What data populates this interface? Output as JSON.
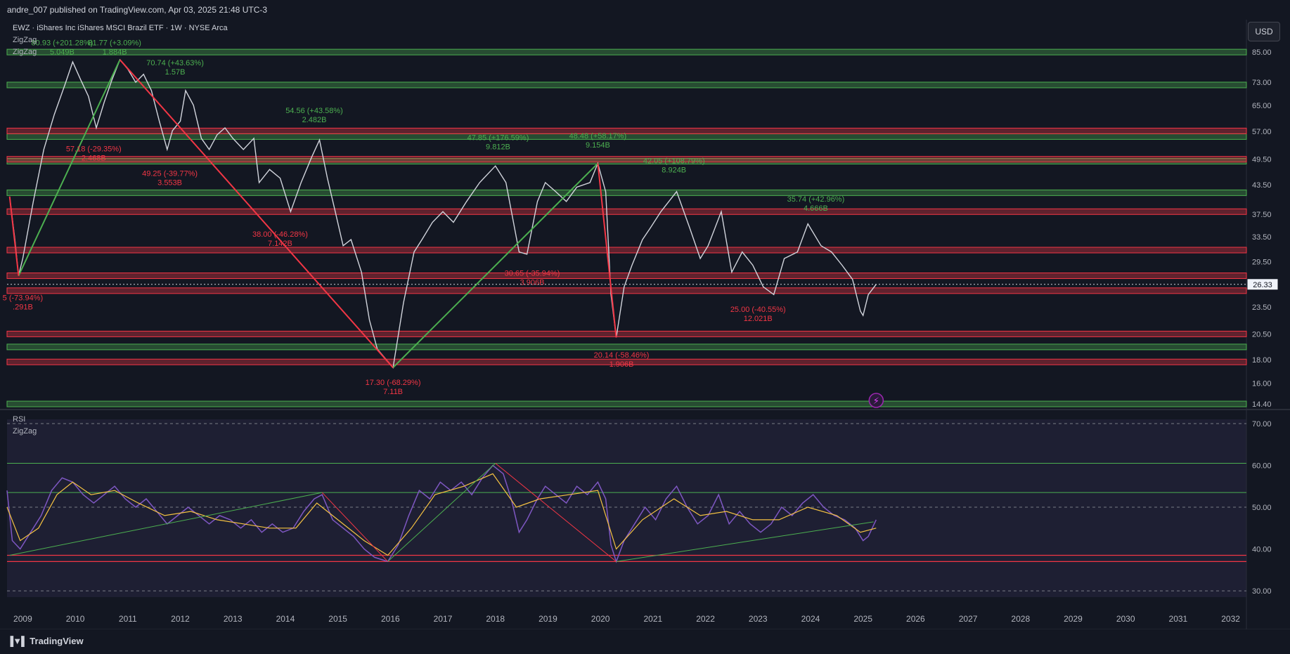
{
  "header": {
    "published": "andre_007 published on TradingView.com, Apr 03, 2025 21:48 UTC-3",
    "symbol": "EWZ · iShares Inc iShares MSCI Brazil ETF · 1W · NYSE Arca",
    "indicator_1": "ZigZag",
    "indicator_2": "ZigZag",
    "currency": "USD"
  },
  "rsi_pane": {
    "title": "RSI",
    "indicator": "ZigZag"
  },
  "footer": {
    "logo": "TradingView"
  },
  "colors": {
    "bg": "#131722",
    "rsi_bg": "#1e1f33",
    "up": "#4caf50",
    "down": "#f23645",
    "price": "#d1d4dc",
    "rsi": "#7e57c2",
    "rsi_ma": "#f5c242",
    "grid_text": "#b2b5be"
  },
  "chart_data": [
    {
      "type": "line",
      "title": "EWZ · iShares Inc iShares MSCI Brazil ETF · 1W · NYSE Arca",
      "scale": "log",
      "xlim": [
        2008.7,
        2032.3
      ],
      "ylim": [
        14.0,
        90.0
      ],
      "x_ticks": [
        "2009",
        "2010",
        "2011",
        "2012",
        "2013",
        "2014",
        "2015",
        "2016",
        "2017",
        "2018",
        "2019",
        "2020",
        "2021",
        "2022",
        "2023",
        "2024",
        "2025",
        "2026",
        "2027",
        "2028",
        "2029",
        "2030",
        "2031",
        "2032"
      ],
      "y_ticks": [
        "85.00",
        "73.00",
        "65.00",
        "57.00",
        "49.50",
        "43.50",
        "37.50",
        "33.50",
        "29.50",
        "23.50",
        "20.50",
        "18.00",
        "16.00",
        "14.40"
      ],
      "last_price": "26.33",
      "price_series": [
        [
          2008.75,
          41.0
        ],
        [
          2008.85,
          33.0
        ],
        [
          2008.92,
          27.5
        ],
        [
          2009.0,
          30.0
        ],
        [
          2009.2,
          40.0
        ],
        [
          2009.4,
          52.0
        ],
        [
          2009.6,
          62.0
        ],
        [
          2009.8,
          72.0
        ],
        [
          2009.95,
          80.9
        ],
        [
          2010.1,
          74.0
        ],
        [
          2010.25,
          68.0
        ],
        [
          2010.4,
          58.0
        ],
        [
          2010.55,
          66.0
        ],
        [
          2010.7,
          74.0
        ],
        [
          2010.85,
          81.77
        ],
        [
          2011.0,
          78.0
        ],
        [
          2011.15,
          73.0
        ],
        [
          2011.3,
          76.0
        ],
        [
          2011.45,
          70.0
        ],
        [
          2011.6,
          60.0
        ],
        [
          2011.75,
          52.0
        ],
        [
          2011.85,
          57.18
        ],
        [
          2012.0,
          60.0
        ],
        [
          2012.1,
          70.0
        ],
        [
          2012.25,
          65.0
        ],
        [
          2012.4,
          55.0
        ],
        [
          2012.55,
          52.0
        ],
        [
          2012.7,
          56.0
        ],
        [
          2012.85,
          58.0
        ],
        [
          2013.0,
          55.0
        ],
        [
          2013.2,
          52.0
        ],
        [
          2013.4,
          55.0
        ],
        [
          2013.5,
          44.0
        ],
        [
          2013.7,
          47.0
        ],
        [
          2013.9,
          45.0
        ],
        [
          2014.1,
          38.0
        ],
        [
          2014.3,
          44.0
        ],
        [
          2014.5,
          50.0
        ],
        [
          2014.65,
          54.56
        ],
        [
          2014.8,
          45.0
        ],
        [
          2014.95,
          38.0
        ],
        [
          2015.1,
          32.0
        ],
        [
          2015.25,
          33.0
        ],
        [
          2015.45,
          28.0
        ],
        [
          2015.6,
          22.0
        ],
        [
          2015.75,
          19.0
        ],
        [
          2016.05,
          17.3
        ],
        [
          2016.25,
          24.0
        ],
        [
          2016.45,
          31.0
        ],
        [
          2016.6,
          33.0
        ],
        [
          2016.8,
          36.0
        ],
        [
          2017.0,
          38.0
        ],
        [
          2017.2,
          36.0
        ],
        [
          2017.45,
          40.0
        ],
        [
          2017.7,
          44.0
        ],
        [
          2018.0,
          47.85
        ],
        [
          2018.2,
          44.0
        ],
        [
          2018.45,
          31.0
        ],
        [
          2018.6,
          30.65
        ],
        [
          2018.8,
          40.0
        ],
        [
          2018.95,
          44.0
        ],
        [
          2019.15,
          42.0
        ],
        [
          2019.35,
          40.0
        ],
        [
          2019.55,
          43.0
        ],
        [
          2019.8,
          44.0
        ],
        [
          2019.95,
          48.48
        ],
        [
          2020.1,
          42.0
        ],
        [
          2020.2,
          25.0
        ],
        [
          2020.3,
          20.14
        ],
        [
          2020.45,
          26.0
        ],
        [
          2020.6,
          29.0
        ],
        [
          2020.8,
          33.0
        ],
        [
          2020.95,
          35.0
        ],
        [
          2021.15,
          38.0
        ],
        [
          2021.45,
          42.05
        ],
        [
          2021.7,
          35.0
        ],
        [
          2021.9,
          30.0
        ],
        [
          2022.05,
          32.0
        ],
        [
          2022.3,
          38.0
        ],
        [
          2022.5,
          28.0
        ],
        [
          2022.7,
          31.0
        ],
        [
          2022.9,
          29.0
        ],
        [
          2023.1,
          26.0
        ],
        [
          2023.3,
          25.0
        ],
        [
          2023.5,
          30.0
        ],
        [
          2023.75,
          31.0
        ],
        [
          2023.95,
          35.74
        ],
        [
          2024.2,
          32.0
        ],
        [
          2024.4,
          31.0
        ],
        [
          2024.6,
          29.0
        ],
        [
          2024.8,
          27.0
        ],
        [
          2024.95,
          23.0
        ],
        [
          2025.0,
          22.5
        ],
        [
          2025.1,
          25.0
        ],
        [
          2025.25,
          26.33
        ]
      ],
      "zigzag_up": [
        {
          "from": [
            2008.92,
            27.5
          ],
          "to": [
            2010.85,
            81.77
          ]
        },
        {
          "from": [
            2016.05,
            17.3
          ],
          "to": [
            2019.95,
            48.48
          ]
        }
      ],
      "zigzag_down": [
        {
          "from": [
            2008.75,
            41.0
          ],
          "to": [
            2008.92,
            27.5
          ]
        },
        {
          "from": [
            2010.85,
            81.77
          ],
          "to": [
            2016.05,
            17.3
          ]
        },
        {
          "from": [
            2019.95,
            48.48
          ],
          "to": [
            2020.3,
            20.14
          ]
        }
      ],
      "green_zones": [
        85.0,
        72.0,
        55.5,
        49.0,
        41.8,
        19.2,
        14.4
      ],
      "red_zones": [
        57.1,
        49.5,
        38.0,
        31.3,
        27.5,
        25.5,
        20.5,
        17.8
      ],
      "annotations": [
        {
          "text": "80.93 (+201.28%)",
          "sub": "5.049B",
          "x": 2009.75,
          "y": 88.0,
          "color": "up"
        },
        {
          "text": "81.77 (+3.09%)",
          "sub": "1.884B",
          "x": 2010.75,
          "y": 88.0,
          "color": "up"
        },
        {
          "text": "70.74 (+43.63%)",
          "sub": "1.57B",
          "x": 2011.9,
          "y": 79.5,
          "color": "up"
        },
        {
          "text": "54.56 (+43.58%)",
          "sub": "2.482B",
          "x": 2014.55,
          "y": 62.5,
          "color": "up"
        },
        {
          "text": "47.85 (+176.59%)",
          "sub": "9.812B",
          "x": 2018.05,
          "y": 54.5,
          "color": "up"
        },
        {
          "text": "48.48 (+58.17%)",
          "sub": "9.154B",
          "x": 2019.95,
          "y": 55.0,
          "color": "up"
        },
        {
          "text": "42.05 (+108.79%)",
          "sub": "8.924B",
          "x": 2021.4,
          "y": 48.5,
          "color": "up"
        },
        {
          "text": "35.74 (+42.96%)",
          "sub": "4.666B",
          "x": 2024.1,
          "y": 40.0,
          "color": "up"
        },
        {
          "text": "57.18 (-29.35%)",
          "sub": "2.468B",
          "x": 2010.35,
          "y": 51.5,
          "color": "down"
        },
        {
          "text": "49.25 (-39.77%)",
          "sub": "3.553B",
          "x": 2011.8,
          "y": 45.5,
          "color": "down"
        },
        {
          "text": "38.00 (-46.28%)",
          "sub": "7.142B",
          "x": 2013.9,
          "y": 33.5,
          "color": "down"
        },
        {
          "text": "30.65 (-35.94%)",
          "sub": "3.906B",
          "x": 2018.7,
          "y": 27.5,
          "color": "down"
        },
        {
          "text": "25.00 (-40.55%)",
          "sub": "12.021B",
          "x": 2023.0,
          "y": 22.9,
          "color": "down"
        },
        {
          "text": "20.14 (-58.46%)",
          "sub": "1.906B",
          "x": 2020.4,
          "y": 18.2,
          "color": "down"
        },
        {
          "text": "17.30 (-68.29%)",
          "sub": "7.11B",
          "x": 2016.05,
          "y": 15.85,
          "color": "down"
        },
        {
          "text": "5 (-73.94%)",
          "sub": ".291B",
          "x": 2009.0,
          "y": 24.3,
          "color": "down"
        }
      ]
    },
    {
      "type": "line",
      "title": "RSI",
      "xlim": [
        2008.7,
        2032.3
      ],
      "ylim": [
        28.5,
        71.0
      ],
      "y_ticks": [
        "70.00",
        "60.00",
        "50.00",
        "40.00",
        "30.00"
      ],
      "rsi_series": [
        [
          2008.7,
          54
        ],
        [
          2008.8,
          42
        ],
        [
          2008.95,
          40
        ],
        [
          2009.15,
          44
        ],
        [
          2009.35,
          48
        ],
        [
          2009.55,
          54
        ],
        [
          2009.75,
          57
        ],
        [
          2009.95,
          56
        ],
        [
          2010.15,
          53
        ],
        [
          2010.35,
          51
        ],
        [
          2010.55,
          53
        ],
        [
          2010.75,
          55
        ],
        [
          2010.95,
          52
        ],
        [
          2011.15,
          50
        ],
        [
          2011.35,
          52
        ],
        [
          2011.55,
          49
        ],
        [
          2011.75,
          46
        ],
        [
          2011.95,
          48
        ],
        [
          2012.15,
          50
        ],
        [
          2012.35,
          48
        ],
        [
          2012.55,
          46
        ],
        [
          2012.75,
          48
        ],
        [
          2012.95,
          47
        ],
        [
          2013.15,
          45
        ],
        [
          2013.35,
          47
        ],
        [
          2013.55,
          44
        ],
        [
          2013.75,
          46
        ],
        [
          2013.95,
          44
        ],
        [
          2014.15,
          45
        ],
        [
          2014.35,
          49
        ],
        [
          2014.55,
          52
        ],
        [
          2014.7,
          53
        ],
        [
          2014.9,
          47
        ],
        [
          2015.1,
          45
        ],
        [
          2015.3,
          43
        ],
        [
          2015.5,
          40
        ],
        [
          2015.7,
          38
        ],
        [
          2015.95,
          37
        ],
        [
          2016.15,
          41
        ],
        [
          2016.35,
          48
        ],
        [
          2016.55,
          54
        ],
        [
          2016.75,
          52
        ],
        [
          2016.95,
          56
        ],
        [
          2017.15,
          54
        ],
        [
          2017.35,
          56
        ],
        [
          2017.55,
          53
        ],
        [
          2017.75,
          57
        ],
        [
          2017.95,
          60
        ],
        [
          2018.15,
          58
        ],
        [
          2018.3,
          52
        ],
        [
          2018.45,
          44
        ],
        [
          2018.6,
          47
        ],
        [
          2018.8,
          52
        ],
        [
          2018.95,
          55
        ],
        [
          2019.15,
          53
        ],
        [
          2019.35,
          51
        ],
        [
          2019.55,
          55
        ],
        [
          2019.75,
          53
        ],
        [
          2019.95,
          56
        ],
        [
          2020.1,
          52
        ],
        [
          2020.2,
          41
        ],
        [
          2020.3,
          37
        ],
        [
          2020.45,
          42
        ],
        [
          2020.65,
          46
        ],
        [
          2020.85,
          50
        ],
        [
          2021.05,
          47
        ],
        [
          2021.25,
          52
        ],
        [
          2021.45,
          55
        ],
        [
          2021.65,
          50
        ],
        [
          2021.85,
          46
        ],
        [
          2022.05,
          48
        ],
        [
          2022.25,
          53
        ],
        [
          2022.45,
          46
        ],
        [
          2022.65,
          49
        ],
        [
          2022.85,
          46
        ],
        [
          2023.05,
          44
        ],
        [
          2023.25,
          46
        ],
        [
          2023.45,
          50
        ],
        [
          2023.65,
          48
        ],
        [
          2023.85,
          51
        ],
        [
          2024.05,
          53
        ],
        [
          2024.25,
          50
        ],
        [
          2024.45,
          48
        ],
        [
          2024.65,
          47
        ],
        [
          2024.85,
          45
        ],
        [
          2025.0,
          42
        ],
        [
          2025.1,
          43
        ],
        [
          2025.25,
          47
        ]
      ],
      "rsi_ma_series": [
        [
          2008.7,
          50
        ],
        [
          2008.95,
          42
        ],
        [
          2009.3,
          45
        ],
        [
          2009.65,
          53
        ],
        [
          2009.95,
          56
        ],
        [
          2010.3,
          53
        ],
        [
          2010.75,
          54
        ],
        [
          2011.2,
          51
        ],
        [
          2011.7,
          48
        ],
        [
          2012.2,
          49
        ],
        [
          2012.7,
          47
        ],
        [
          2013.2,
          46
        ],
        [
          2013.7,
          45
        ],
        [
          2014.2,
          45
        ],
        [
          2014.6,
          51
        ],
        [
          2015.0,
          47
        ],
        [
          2015.5,
          42
        ],
        [
          2015.95,
          38.5
        ],
        [
          2016.4,
          45
        ],
        [
          2016.85,
          53
        ],
        [
          2017.4,
          55
        ],
        [
          2017.95,
          58
        ],
        [
          2018.4,
          50
        ],
        [
          2018.85,
          52
        ],
        [
          2019.4,
          53
        ],
        [
          2019.95,
          54
        ],
        [
          2020.3,
          40
        ],
        [
          2020.8,
          47
        ],
        [
          2021.4,
          52
        ],
        [
          2021.9,
          48
        ],
        [
          2022.4,
          49
        ],
        [
          2022.9,
          47
        ],
        [
          2023.4,
          47
        ],
        [
          2023.95,
          50
        ],
        [
          2024.5,
          48
        ],
        [
          2024.95,
          44
        ],
        [
          2025.25,
          45
        ]
      ],
      "zigzag_up": [
        {
          "from": [
            2008.75,
            38.5
          ],
          "to": [
            2014.7,
            53.5
          ]
        },
        {
          "from": [
            2015.95,
            37
          ],
          "to": [
            2018.0,
            60.5
          ]
        },
        {
          "from": [
            2020.3,
            37
          ],
          "to": [
            2025.2,
            46.5
          ]
        }
      ],
      "zigzag_down": [
        {
          "from": [
            2014.7,
            53.5
          ],
          "to": [
            2015.95,
            37
          ]
        },
        {
          "from": [
            2018.0,
            60.5
          ],
          "to": [
            2020.3,
            37
          ]
        }
      ],
      "green_levels": [
        60.5,
        53.5
      ],
      "red_levels": [
        38.5,
        37.0
      ],
      "dashed_levels": [
        70.0,
        50.0,
        30.0
      ]
    }
  ]
}
